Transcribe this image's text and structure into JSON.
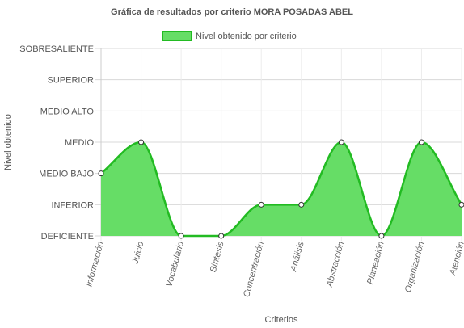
{
  "chart_data": {
    "type": "area",
    "title": "Gráfica de resultados por criterio MORA POSADAS ABEL",
    "xlabel": "Criterios",
    "ylabel": "Nivel obtenido",
    "y_levels": [
      "DEFICIENTE",
      "INFERIOR",
      "MEDIO BAJO",
      "MEDIO",
      "MEDIO ALTO",
      "SUPERIOR",
      "SOBRESALIENTE"
    ],
    "ylim": [
      0,
      6
    ],
    "categories": [
      "Información",
      "Juicio",
      "Vocabulario",
      "Síntesis",
      "Concentración",
      "Análisis",
      "Abstracción",
      "Planeación",
      "Organización",
      "Atención"
    ],
    "series": [
      {
        "name": "Nivel obtenido por criterio",
        "values": [
          2,
          3,
          0,
          0,
          1,
          1,
          3,
          0,
          3,
          1
        ],
        "fill_color": "#66dd66",
        "line_color": "#22bb22"
      }
    ],
    "grid": true,
    "legend_position": "top-center"
  }
}
